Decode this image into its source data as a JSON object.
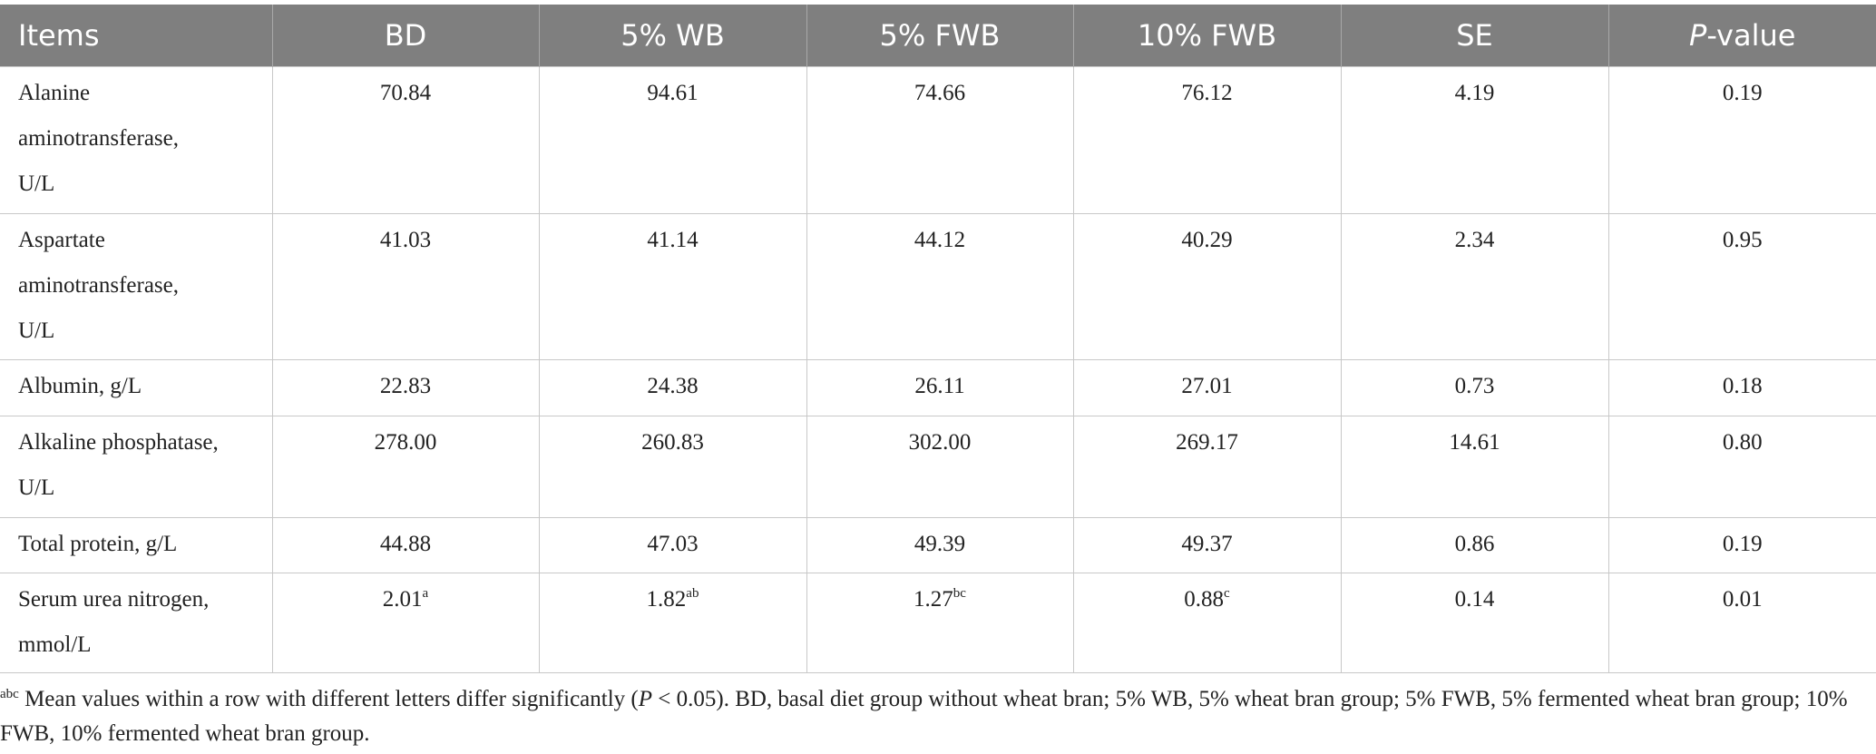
{
  "table": {
    "header": [
      "Items",
      "BD",
      "5% WB",
      "5% FWB",
      "10% FWB",
      "SE",
      {
        "italic": "P",
        "text": "-value"
      }
    ],
    "rows": [
      {
        "label": [
          "Alanine",
          "aminotransferase,",
          "U/L"
        ],
        "cells": [
          {
            "v": "70.84"
          },
          {
            "v": "94.61"
          },
          {
            "v": "74.66"
          },
          {
            "v": "76.12"
          },
          {
            "v": "4.19"
          },
          {
            "v": "0.19"
          }
        ]
      },
      {
        "label": [
          "Aspartate",
          "aminotransferase,",
          "U/L"
        ],
        "cells": [
          {
            "v": "41.03"
          },
          {
            "v": "41.14"
          },
          {
            "v": "44.12"
          },
          {
            "v": "40.29"
          },
          {
            "v": "2.34"
          },
          {
            "v": "0.95"
          }
        ]
      },
      {
        "label": [
          "Albumin, g/L"
        ],
        "cells": [
          {
            "v": "22.83"
          },
          {
            "v": "24.38"
          },
          {
            "v": "26.11"
          },
          {
            "v": "27.01"
          },
          {
            "v": "0.73"
          },
          {
            "v": "0.18"
          }
        ]
      },
      {
        "label": [
          "Alkaline phosphatase,",
          "U/L"
        ],
        "cells": [
          {
            "v": "278.00"
          },
          {
            "v": "260.83"
          },
          {
            "v": "302.00"
          },
          {
            "v": "269.17"
          },
          {
            "v": "14.61"
          },
          {
            "v": "0.80"
          }
        ]
      },
      {
        "label": [
          "Total protein, g/L"
        ],
        "cells": [
          {
            "v": "44.88"
          },
          {
            "v": "47.03"
          },
          {
            "v": "49.39"
          },
          {
            "v": "49.37"
          },
          {
            "v": "0.86"
          },
          {
            "v": "0.19"
          }
        ]
      },
      {
        "label": [
          "Serum urea nitrogen,",
          "mmol/L"
        ],
        "cells": [
          {
            "v": "2.01",
            "sup": "a"
          },
          {
            "v": "1.82",
            "sup": "ab"
          },
          {
            "v": "1.27",
            "sup": "bc"
          },
          {
            "v": "0.88",
            "sup": "c"
          },
          {
            "v": "0.14"
          },
          {
            "v": "0.01"
          }
        ]
      }
    ]
  },
  "footnote": {
    "sup": "abc",
    "parts": [
      " Mean values within a row with different letters differ significantly (",
      "P",
      " < 0.05). BD, basal diet group without wheat bran; 5% WB, 5% wheat bran group; 5% FWB, 5% fermented wheat bran group; 10% FWB, 10% fermented wheat bran group."
    ]
  }
}
